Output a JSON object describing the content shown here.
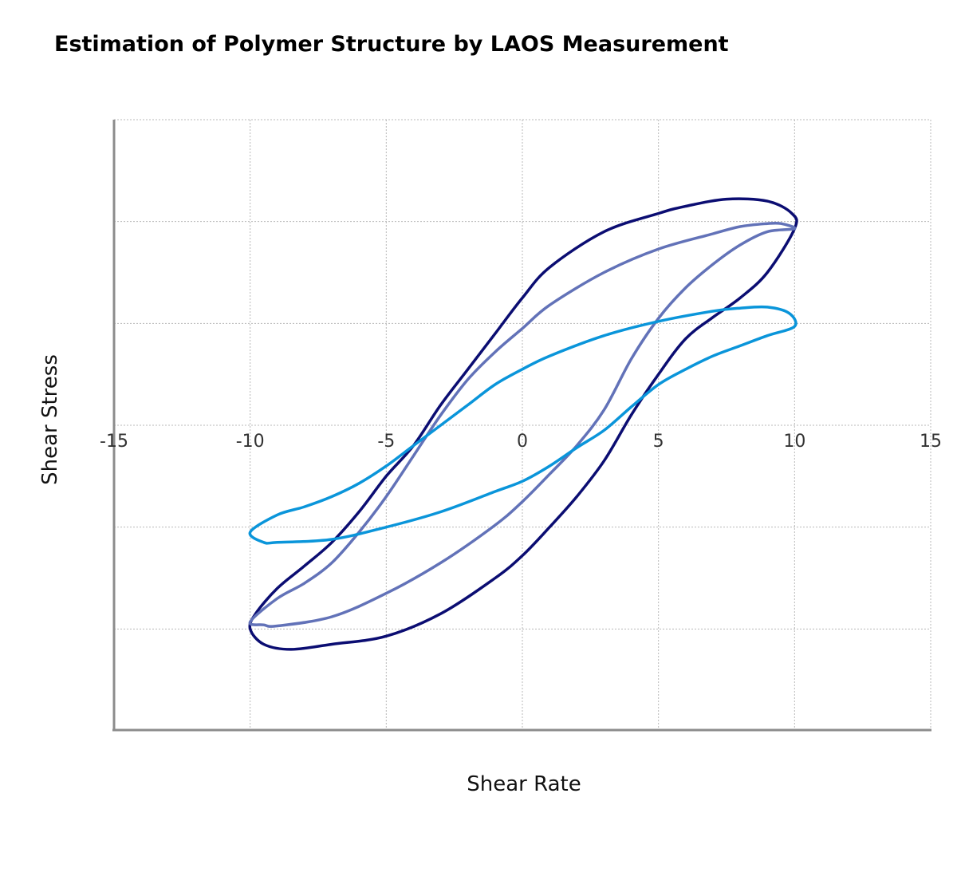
{
  "chart_data": {
    "type": "line",
    "title": "Estimation of Polymer Structure by LAOS Measurement",
    "xlabel": "Shear Rate",
    "ylabel": "Shear Stress",
    "xlim": [
      -15,
      15
    ],
    "ylim": [
      -3,
      3
    ],
    "x_ticks": [
      -15,
      -10,
      -5,
      0,
      5,
      10,
      15
    ],
    "y_ticks_labeled": false,
    "grid": true,
    "legend": "none",
    "series": [
      {
        "color": "#0b0d72",
        "points": [
          [
            -10,
            -2
          ],
          [
            -9.5,
            -2.15
          ],
          [
            -8.5,
            -2.2
          ],
          [
            -7,
            -2.15
          ],
          [
            -5,
            -2.07
          ],
          [
            -3,
            -1.85
          ],
          [
            -1,
            -1.5
          ],
          [
            0,
            -1.28
          ],
          [
            1,
            -1.0
          ],
          [
            2,
            -0.7
          ],
          [
            3,
            -0.35
          ],
          [
            4,
            0.1
          ],
          [
            5,
            0.5
          ],
          [
            6,
            0.85
          ],
          [
            7,
            1.06
          ],
          [
            8,
            1.25
          ],
          [
            9,
            1.5
          ],
          [
            10,
            1.93
          ],
          [
            9.9,
            2.08
          ],
          [
            9,
            2.2
          ],
          [
            7.5,
            2.22
          ],
          [
            6,
            2.15
          ],
          [
            5,
            2.08
          ],
          [
            3,
            1.9
          ],
          [
            1,
            1.55
          ],
          [
            0,
            1.25
          ],
          [
            -1,
            0.9
          ],
          [
            -2,
            0.55
          ],
          [
            -3,
            0.2
          ],
          [
            -4,
            -0.2
          ],
          [
            -5,
            -0.5
          ],
          [
            -6,
            -0.85
          ],
          [
            -7,
            -1.15
          ],
          [
            -8,
            -1.38
          ],
          [
            -9,
            -1.6
          ],
          [
            -9.8,
            -1.85
          ],
          [
            -10,
            -2.0
          ]
        ]
      },
      {
        "color": "#6272b8",
        "points": [
          [
            -10,
            -1.93
          ],
          [
            -9.5,
            -1.96
          ],
          [
            -9,
            -1.97
          ],
          [
            -7,
            -1.88
          ],
          [
            -5,
            -1.65
          ],
          [
            -3,
            -1.35
          ],
          [
            -1,
            -0.98
          ],
          [
            0,
            -0.75
          ],
          [
            1,
            -0.48
          ],
          [
            2,
            -0.2
          ],
          [
            3,
            0.15
          ],
          [
            4,
            0.65
          ],
          [
            5,
            1.05
          ],
          [
            6,
            1.35
          ],
          [
            7,
            1.58
          ],
          [
            8,
            1.77
          ],
          [
            9,
            1.9
          ],
          [
            10,
            1.93
          ],
          [
            9.5,
            1.98
          ],
          [
            9,
            1.98
          ],
          [
            8,
            1.95
          ],
          [
            7,
            1.88
          ],
          [
            5,
            1.73
          ],
          [
            3,
            1.5
          ],
          [
            1,
            1.18
          ],
          [
            0,
            0.95
          ],
          [
            -1,
            0.72
          ],
          [
            -2,
            0.45
          ],
          [
            -3,
            0.1
          ],
          [
            -4,
            -0.3
          ],
          [
            -5,
            -0.7
          ],
          [
            -6,
            -1.05
          ],
          [
            -7,
            -1.35
          ],
          [
            -8,
            -1.55
          ],
          [
            -9,
            -1.7
          ],
          [
            -10,
            -1.93
          ]
        ]
      },
      {
        "color": "#0a95da",
        "points": [
          [
            -10,
            -1.05
          ],
          [
            -9.5,
            -1.15
          ],
          [
            -9,
            -1.15
          ],
          [
            -7,
            -1.12
          ],
          [
            -5,
            -1.0
          ],
          [
            -3,
            -0.85
          ],
          [
            -1,
            -0.65
          ],
          [
            0,
            -0.55
          ],
          [
            1,
            -0.4
          ],
          [
            2,
            -0.22
          ],
          [
            3,
            -0.05
          ],
          [
            4,
            0.18
          ],
          [
            5,
            0.4
          ],
          [
            6,
            0.55
          ],
          [
            7,
            0.68
          ],
          [
            8,
            0.78
          ],
          [
            9,
            0.88
          ],
          [
            10,
            0.97
          ],
          [
            9.8,
            1.1
          ],
          [
            9,
            1.16
          ],
          [
            8,
            1.15
          ],
          [
            7,
            1.12
          ],
          [
            5,
            1.02
          ],
          [
            3,
            0.88
          ],
          [
            1,
            0.68
          ],
          [
            0,
            0.55
          ],
          [
            -1,
            0.4
          ],
          [
            -2,
            0.2
          ],
          [
            -3,
            0.0
          ],
          [
            -4,
            -0.2
          ],
          [
            -5,
            -0.4
          ],
          [
            -6,
            -0.57
          ],
          [
            -7,
            -0.7
          ],
          [
            -8,
            -0.8
          ],
          [
            -9,
            -0.88
          ],
          [
            -10,
            -1.05
          ]
        ]
      }
    ]
  }
}
